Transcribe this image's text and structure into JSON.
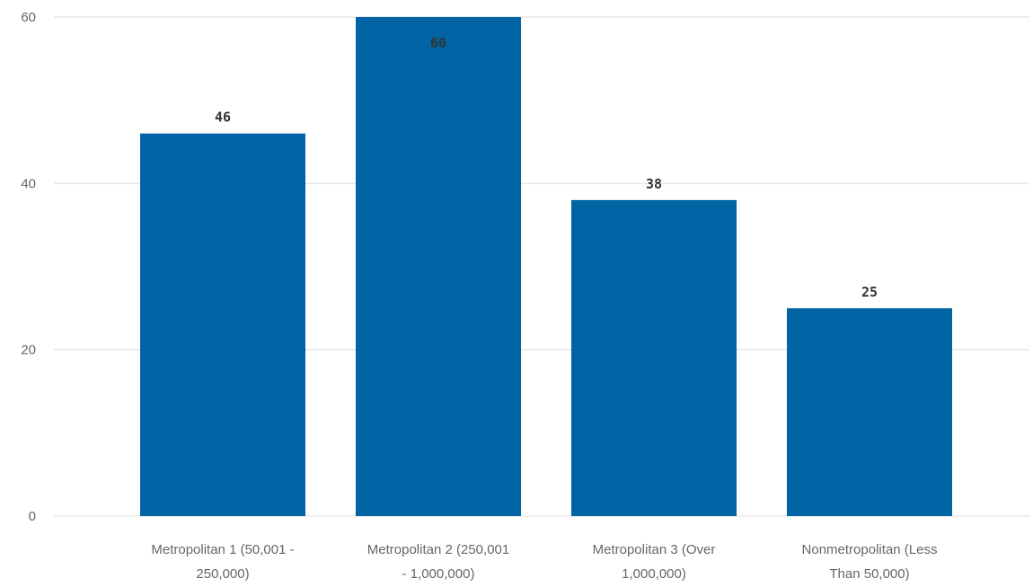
{
  "chart_data": {
    "type": "bar",
    "categories": [
      [
        "Metropolitan 1 (50,001 -",
        "250,000)"
      ],
      [
        "Metropolitan 2 (250,001",
        "- 1,000,000)"
      ],
      [
        "Metropolitan 3 (Over",
        "1,000,000)"
      ],
      [
        "Nonmetropolitan (Less",
        "Than 50,000)"
      ]
    ],
    "values": [
      46,
      60,
      38,
      25
    ],
    "ylim": [
      0,
      60
    ],
    "yticks": [
      "0",
      "20",
      "40",
      "60"
    ],
    "data_labels": [
      "46",
      "60",
      "38",
      "25"
    ],
    "grid": true,
    "bar_color": "#0064a5",
    "grid_color": "#e8e8e8"
  }
}
